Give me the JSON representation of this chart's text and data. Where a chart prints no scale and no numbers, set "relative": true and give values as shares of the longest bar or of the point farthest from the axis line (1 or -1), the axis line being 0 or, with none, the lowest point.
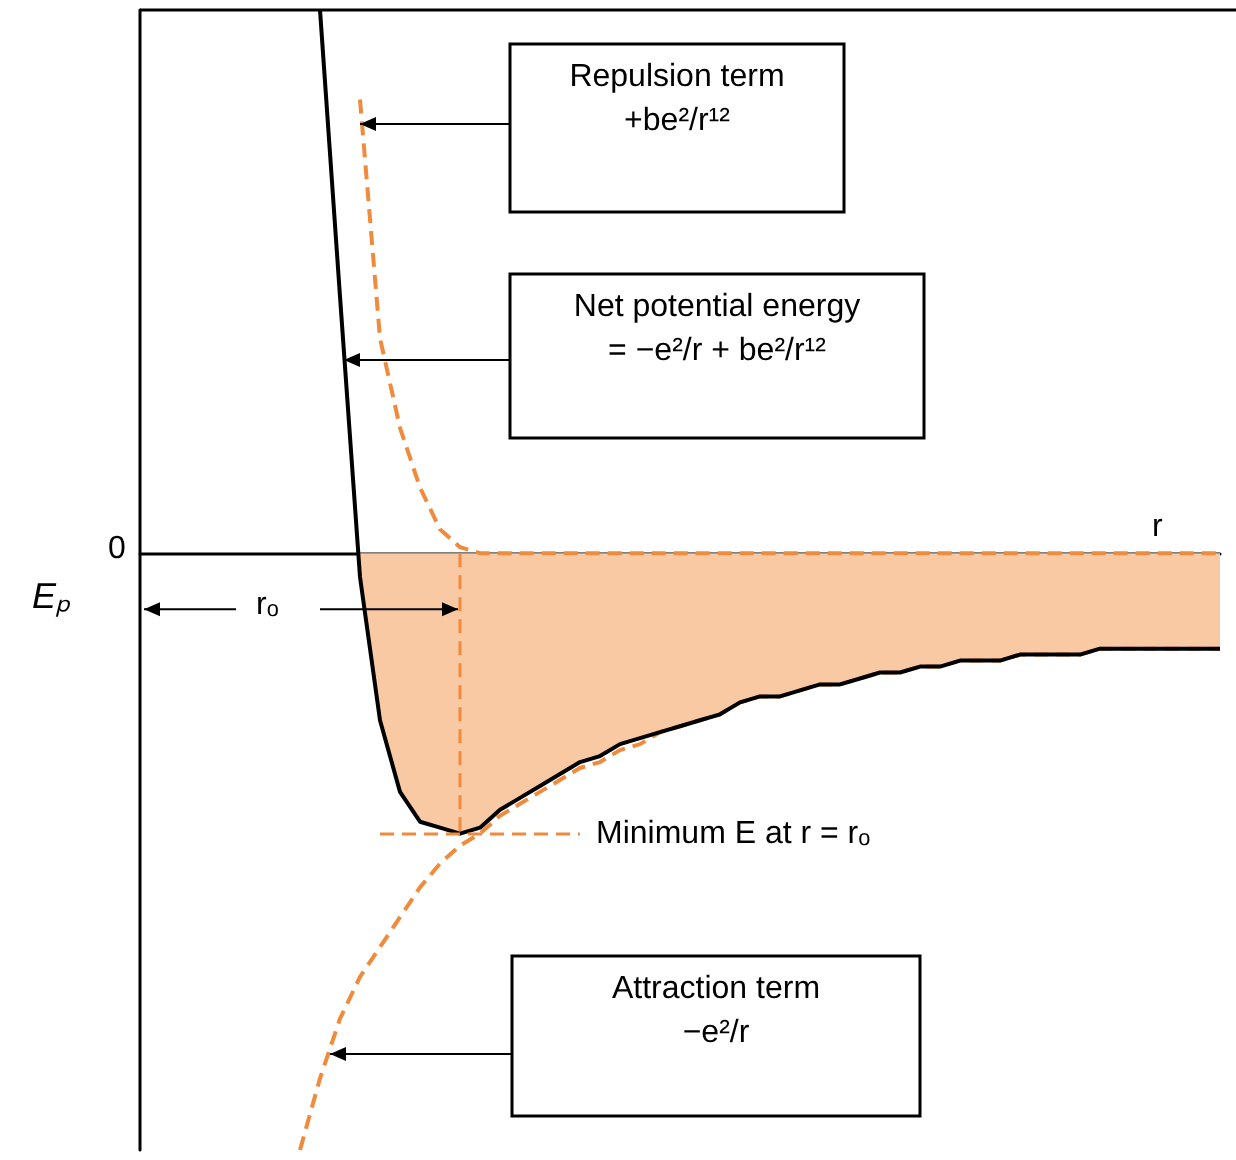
{
  "chart_data": {
    "type": "line",
    "relative": true,
    "xlabel": "r",
    "ylabel": "Eₚ",
    "grid": false,
    "marker": "none",
    "ref_lines": [
      {
        "axis": "y",
        "value": -0.47,
        "label": "Minimum E at r = rₒ",
        "color": "#f08a3c",
        "line_style": "dashed"
      }
    ],
    "categories": [
      null,
      null,
      null,
      null,
      null,
      null,
      null,
      null,
      null,
      null,
      null,
      null,
      null,
      null,
      null,
      null,
      null,
      null,
      null,
      null,
      null,
      null,
      null,
      null,
      null,
      null,
      null,
      null,
      null,
      null,
      null,
      null,
      null,
      null,
      null,
      null,
      null,
      null,
      null,
      null,
      null,
      null,
      null,
      null,
      null,
      null,
      null,
      null,
      null,
      null,
      null,
      null,
      null,
      null,
      null
    ],
    "series": [
      {
        "type": "area",
        "color": "#f9c9a4",
        "values": [
          null,
          null,
          null,
          null,
          null,
          null,
          null,
          null,
          null,
          null,
          null,
          -0.04,
          -0.28,
          -0.4,
          -0.45,
          -0.46,
          -0.47,
          -0.46,
          -0.43,
          -0.41,
          -0.39,
          -0.37,
          -0.35,
          -0.34,
          -0.32,
          -0.31,
          -0.3,
          -0.29,
          -0.28,
          -0.27,
          -0.25,
          -0.24,
          -0.24,
          -0.23,
          -0.22,
          -0.22,
          -0.21,
          -0.2,
          -0.2,
          -0.19,
          -0.19,
          -0.18,
          -0.18,
          -0.18,
          -0.17,
          -0.17,
          -0.17,
          -0.17,
          -0.16,
          -0.16,
          -0.16,
          -0.16,
          -0.16,
          -0.16,
          -0.16
        ]
      },
      {
        "color": "#f08a3c",
        "line_style": "dashed",
        "values": [
          null,
          null,
          null,
          null,
          null,
          null,
          null,
          null,
          -1.0,
          -0.88,
          -0.78,
          -0.71,
          -0.66,
          -0.61,
          -0.56,
          -0.52,
          -0.49,
          -0.47,
          -0.44,
          -0.42,
          -0.4,
          -0.38,
          -0.36,
          -0.35,
          -0.33,
          -0.32,
          -0.3,
          -0.29,
          -0.28,
          -0.27,
          -0.25,
          -0.24,
          -0.24,
          -0.23,
          -0.22,
          -0.22,
          -0.21,
          -0.2,
          -0.2,
          -0.19,
          -0.19,
          -0.18,
          -0.18,
          -0.18,
          -0.17,
          -0.17,
          -0.17,
          -0.17,
          -0.16,
          -0.16,
          -0.16,
          -0.16,
          -0.16,
          -0.16,
          -0.16
        ]
      },
      {
        "color": "#f08a3c",
        "line_style": "dashed",
        "values": [
          null,
          null,
          null,
          null,
          null,
          null,
          null,
          null,
          null,
          null,
          null,
          0.76,
          0.36,
          0.21,
          0.11,
          0.04,
          0.01,
          0,
          0,
          0,
          0,
          0,
          0,
          0,
          0,
          0,
          0,
          0,
          0,
          0,
          0,
          0,
          0,
          0,
          0,
          0,
          0,
          0,
          0,
          0,
          0,
          0,
          0,
          0,
          0,
          0,
          0,
          0,
          0,
          0,
          0,
          0,
          0,
          0,
          0
        ]
      },
      {
        "color": "#000000",
        "line_style": "solid",
        "values": [
          null,
          null,
          null,
          null,
          null,
          null,
          null,
          null,
          null,
          0.91,
          0.43,
          -0.04,
          -0.28,
          -0.4,
          -0.45,
          -0.46,
          -0.47,
          -0.46,
          -0.43,
          -0.41,
          -0.39,
          -0.37,
          -0.35,
          -0.34,
          -0.32,
          -0.31,
          -0.3,
          -0.29,
          -0.28,
          -0.27,
          -0.25,
          -0.24,
          -0.24,
          -0.23,
          -0.22,
          -0.22,
          -0.21,
          -0.2,
          -0.2,
          -0.19,
          -0.19,
          -0.18,
          -0.18,
          -0.18,
          -0.17,
          -0.17,
          -0.17,
          -0.17,
          -0.16,
          -0.16,
          -0.16,
          -0.16,
          -0.16,
          -0.16,
          -0.16
        ]
      }
    ],
    "annotations": [
      "Repulsion term\n+be²/r¹²",
      "Net potential energy\n= −e²/r + be²/r¹²",
      "Attraction term\n−e²/r",
      "rₒ",
      "0"
    ]
  }
}
